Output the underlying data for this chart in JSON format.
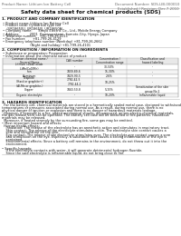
{
  "header_left": "Product Name: Lithium Ion Battery Cell",
  "header_right": "Document Number: SDS-LIB-000010\nEstablished / Revision: Dec.7.2010",
  "title": "Safety data sheet for chemical products (SDS)",
  "s1_title": "1. PRODUCT AND COMPANY IDENTIFICATION",
  "s1_lines": [
    "• Product name: Lithium Ion Battery Cell",
    "• Product code: Cylindrical type cell",
    "    (UR18650U, UR18650J, UR18650A)",
    "• Company name:      Sanyo Electric Co., Ltd., Mobile Energy Company",
    "• Address:          2001  Kamizunakami, Sumoto-City, Hyogo, Japan",
    "• Telephone number:   +81-799-26-4111",
    "• Fax number:       +81-799-26-4129",
    "• Emergency telephone number (Weekday) +81-799-26-2662",
    "                           (Night and holiday) +81-799-26-4101"
  ],
  "s2_title": "2. COMPOSITION / INFORMATION ON INGREDIENTS",
  "s2_line1": "• Substance or preparation: Preparation",
  "s2_line2": "• Information about the chemical nature of product:",
  "tbl_cols": [
    3,
    62,
    102,
    140,
    197
  ],
  "tbl_hdr": [
    "Common chemical name /\nSeveral Name",
    "CAS number",
    "Concentration /\nConcentration range",
    "Classification and\nhazard labeling"
  ],
  "tbl_rows": [
    [
      "Lithium cobalt oxide\n(LiMn/CoO/Mn)",
      "-",
      "30-50%",
      "-"
    ],
    [
      "Iron",
      "7439-89-6",
      "15-30%",
      "-"
    ],
    [
      "Aluminum",
      "7429-90-5",
      "2-6%",
      "-"
    ],
    [
      "Graphite\n(Hard or graphite+)\n(Al-Mn or graphite-)",
      "7782-42-5\n7782-44-2",
      "10-25%",
      "-"
    ],
    [
      "Copper",
      "7440-50-8",
      "5-15%",
      "Sensitization of the skin\ngroup No.2"
    ],
    [
      "Organic electrolyte",
      "-",
      "10-20%",
      "Inflammable liquid"
    ]
  ],
  "tbl_row_h": [
    6.5,
    4.5,
    4.5,
    9.0,
    7.5,
    4.5
  ],
  "s3_title": "3. HAZARDS IDENTIFICATION",
  "s3_para": [
    "  For the battery cell, chemical materials are stored in a hermetically sealed metal case, designed to withstand",
    "temperatures or pressures associated during normal use. As a result, during normal use, there is no",
    "physical danger of ignition or explosion and there is no danger of hazardous materials leakage.",
    "  However, if exposed to a fire, added mechanical shocks, decomposed, writen electro-chemical materials,",
    "the gas release vent can be operated. The battery cell case will be breached of fire-patterns. hazardous",
    "materials may be released.",
    "  Moreover, if heated strongly by the surrounding fire, some gas may be emitted."
  ],
  "s3_bullets": [
    "• Most important hazard and effects:",
    "  Human health effects:",
    "    Inhalation: The release of the electrolyte has an anesthetic action and stimulates in respiratory tract.",
    "    Skin contact: The release of the electrolyte stimulates a skin. The electrolyte skin contact causes a",
    "    sore and stimulation on the skin.",
    "    Eye contact: The release of the electrolyte stimulates eyes. The electrolyte eye contact causes a sore",
    "    and stimulation on the eye. Especially, a substance that causes a strong inflammation of the eye is",
    "    contained.",
    "    Environmental effects: Since a battery cell remains in the environment, do not throw out it into the",
    "    environment.",
    "",
    "• Specific hazards:",
    "    If the electrolyte contacts with water, it will generate detrimental hydrogen fluoride.",
    "    Since the said electrolyte is inflammable liquid, do not bring close to fire."
  ],
  "bg_color": "#ffffff",
  "text_color": "#111111",
  "gray_color": "#666666",
  "line_color": "#aaaaaa",
  "tbl_head_bg": "#e8e8e8"
}
